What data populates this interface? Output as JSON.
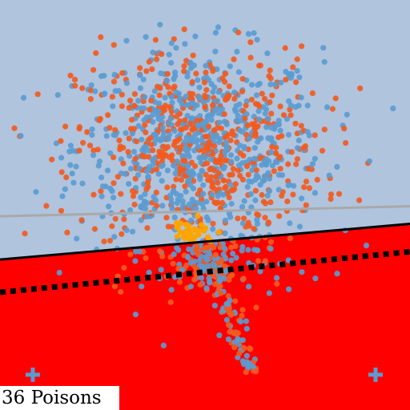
{
  "caption": "36 Poisons",
  "chart_data": {
    "type": "scatter",
    "title": "",
    "xlabel": "",
    "ylabel": "",
    "xlim": [
      -1,
      1
    ],
    "ylim": [
      -1,
      1
    ],
    "grid": false,
    "axes_visible": false,
    "colors": {
      "region_upper": "#b0c4de",
      "region_lower": "#ff0000",
      "class_a": "#5b9bd0",
      "class_b": "#f25a1e",
      "poison": "#ffa500",
      "decision_boundary": "#000000",
      "shifted_boundary": "#000000",
      "reference_line": "#a9a9a9",
      "marker": "#5b9bd0"
    },
    "lines": [
      {
        "role": "reference_line",
        "style": "solid",
        "points": [
          [
            -1,
            -0.055
          ],
          [
            1,
            -0.006
          ]
        ]
      },
      {
        "role": "decision_boundary",
        "style": "solid",
        "points": [
          [
            -1,
            -0.266
          ],
          [
            1,
            -0.092
          ]
        ]
      },
      {
        "role": "shifted_boundary",
        "style": "dotted",
        "points": [
          [
            -1,
            -0.426
          ],
          [
            1,
            -0.228
          ]
        ]
      }
    ],
    "markers": [
      {
        "shape": "plus",
        "x": -0.84,
        "y": -0.828
      },
      {
        "shape": "plus",
        "x": 0.832,
        "y": -0.828
      }
    ],
    "clusters": [
      {
        "class": "class_a",
        "count": 620,
        "cx": -0.03,
        "cy": 0.28,
        "sx": 0.3,
        "sy": 0.24
      },
      {
        "class": "class_b",
        "count": 560,
        "cx": -0.03,
        "cy": 0.28,
        "sx": 0.3,
        "sy": 0.24
      },
      {
        "class": "class_a",
        "count": 60,
        "cx": 0.05,
        "cy": -0.3,
        "sx": 0.18,
        "sy": 0.08
      },
      {
        "class": "class_b",
        "count": 40,
        "cx": 0.05,
        "cy": -0.3,
        "sx": 0.18,
        "sy": 0.08
      }
    ],
    "tail": {
      "classes": [
        "class_a",
        "class_b"
      ],
      "count": 150,
      "from": [
        0.0,
        -0.19
      ],
      "to": [
        0.23,
        -0.83
      ],
      "spread": 0.035
    },
    "poison_points": {
      "class": "poison",
      "count": 36,
      "cx": -0.04,
      "cy": -0.13,
      "sx": 0.06,
      "sy": 0.03
    }
  }
}
